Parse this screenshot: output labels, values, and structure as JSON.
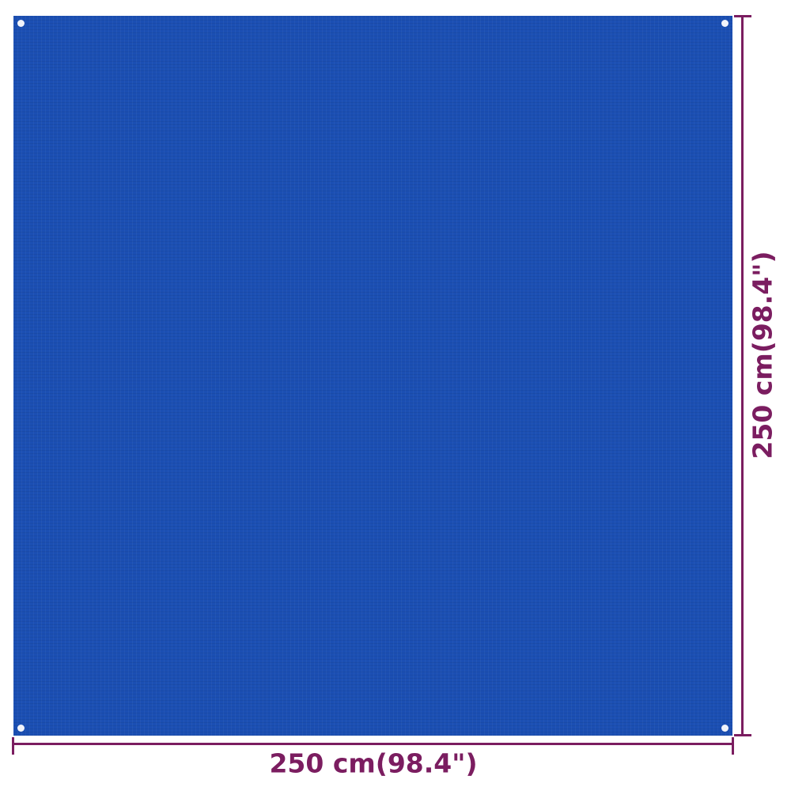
{
  "product": {
    "color": "#1b4fb3",
    "type": "tent-carpet"
  },
  "dimensions": {
    "width_label": "250 cm(98.4\")",
    "height_label": "250 cm(98.4\")",
    "line_color": "#7b1d60"
  }
}
